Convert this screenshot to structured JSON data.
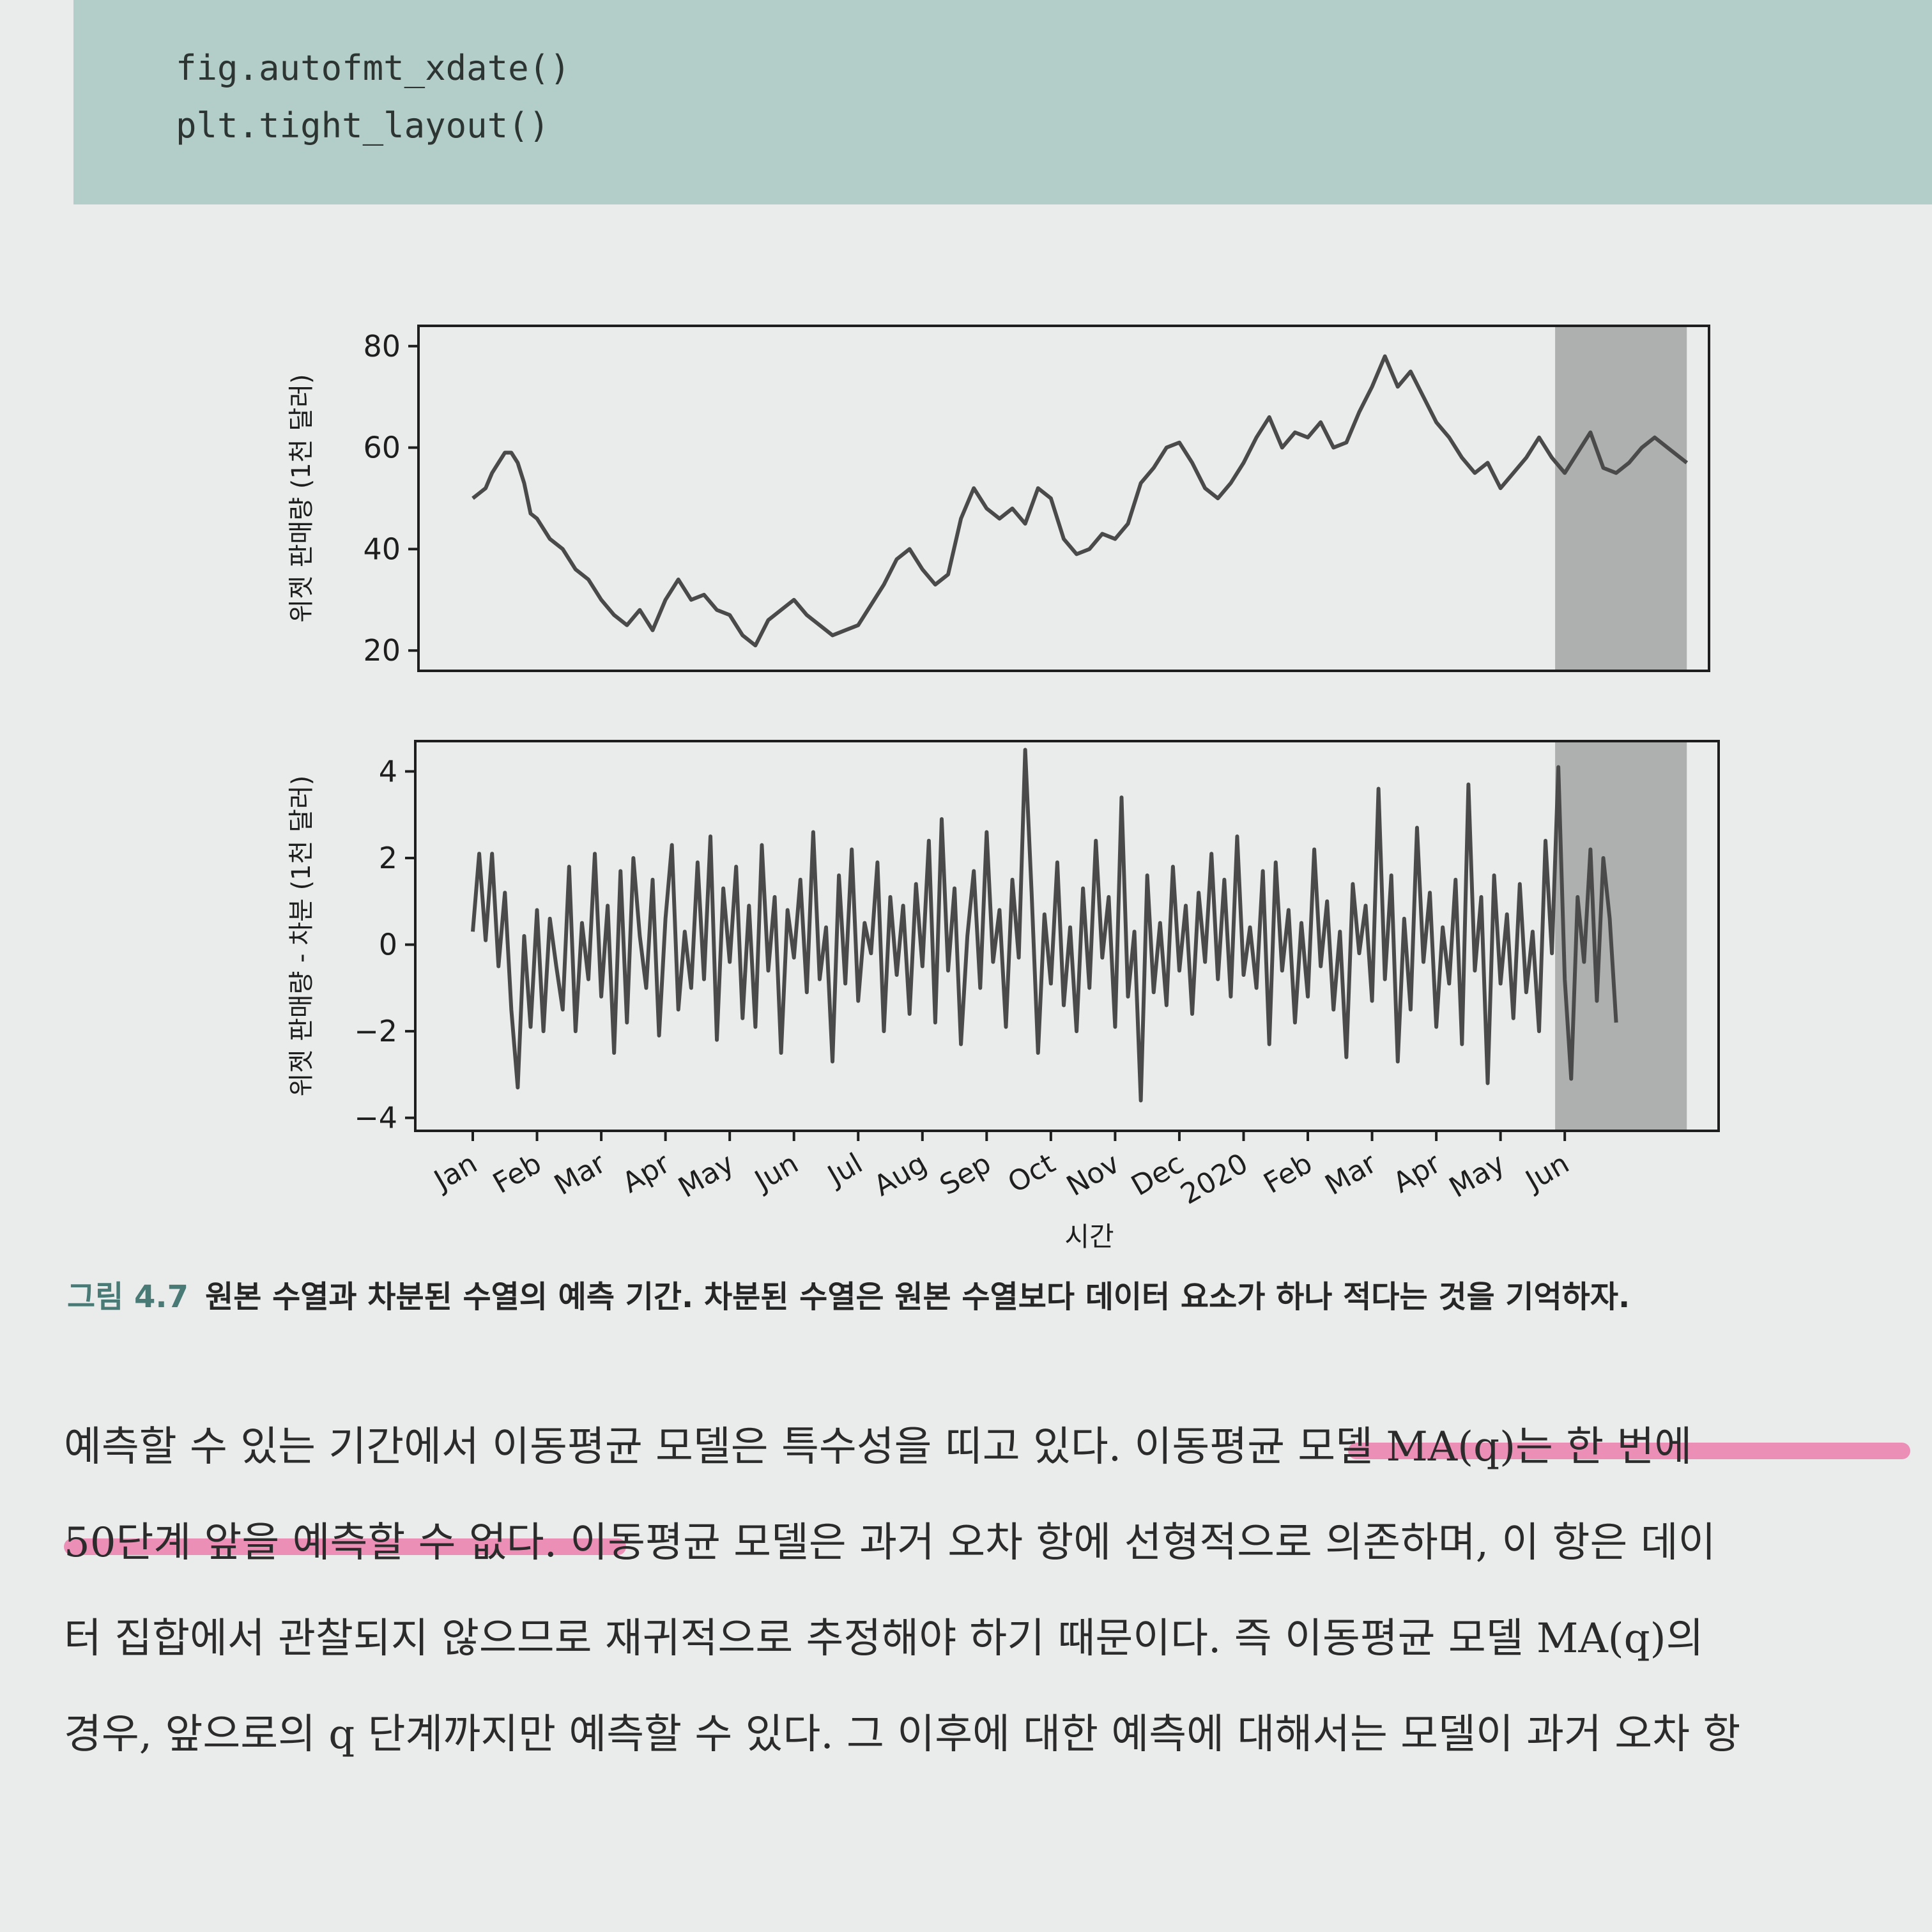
{
  "code": {
    "lines": [
      "fig.autofmt_xdate()",
      "plt.tight_layout()"
    ]
  },
  "chart_data": [
    {
      "type": "line",
      "ylabel": "위젯 판매량 (1천 달러)",
      "ylim": [
        16,
        84
      ],
      "yticks": [
        20,
        40,
        60,
        80
      ],
      "grid": false,
      "forecast_shading": {
        "from_month_index": 16.85,
        "to_month_index": 18.9
      },
      "series": [
        {
          "x_month_index": [
            0,
            0.1,
            0.2,
            0.3,
            0.4,
            0.5,
            0.6,
            0.7,
            0.8,
            0.9,
            1.0,
            1.2,
            1.4,
            1.6,
            1.8,
            2.0,
            2.2,
            2.4,
            2.6,
            2.8,
            3.0,
            3.2,
            3.4,
            3.6,
            3.8,
            4.0,
            4.2,
            4.4,
            4.6,
            4.8,
            5.0,
            5.2,
            5.4,
            5.6,
            5.8,
            6.0,
            6.2,
            6.4,
            6.6,
            6.8,
            7.0,
            7.2,
            7.4,
            7.6,
            7.8,
            8.0,
            8.2,
            8.4,
            8.6,
            8.8,
            9.0,
            9.2,
            9.4,
            9.6,
            9.8,
            10.0,
            10.2,
            10.4,
            10.6,
            10.8,
            11.0,
            11.2,
            11.4,
            11.6,
            11.8,
            12.0,
            12.2,
            12.4,
            12.6,
            12.8,
            13.0,
            13.2,
            13.4,
            13.6,
            13.8,
            14.0,
            14.2,
            14.4,
            14.6,
            14.8,
            15.0,
            15.2,
            15.4,
            15.6,
            15.8,
            16.0,
            16.2,
            16.4,
            16.6,
            16.8,
            17.0,
            17.2,
            17.4,
            17.6,
            17.8,
            18.0,
            18.2,
            18.4,
            18.6,
            18.9
          ],
          "values": [
            50,
            51,
            52,
            55,
            57,
            59,
            59,
            57,
            53,
            47,
            46,
            42,
            40,
            36,
            34,
            30,
            27,
            25,
            28,
            24,
            30,
            34,
            30,
            31,
            28,
            27,
            23,
            21,
            26,
            28,
            30,
            27,
            25,
            23,
            24,
            25,
            29,
            33,
            38,
            40,
            36,
            33,
            35,
            46,
            52,
            48,
            46,
            48,
            45,
            52,
            50,
            42,
            39,
            40,
            43,
            42,
            45,
            53,
            56,
            60,
            61,
            57,
            52,
            50,
            53,
            57,
            62,
            66,
            60,
            63,
            62,
            65,
            60,
            61,
            67,
            72,
            78,
            72,
            75,
            70,
            65,
            62,
            58,
            55,
            57,
            52,
            55,
            58,
            62,
            58,
            55,
            59,
            63,
            56,
            55,
            57,
            60,
            62,
            60,
            57
          ],
          "approximate": true
        }
      ]
    },
    {
      "type": "line",
      "ylabel": "위젯 판매량 - 차분 (1천 달러)",
      "xlabel": "시간",
      "ylim": [
        -4.3,
        4.7
      ],
      "yticks": [
        -4,
        -2,
        0,
        2,
        4
      ],
      "xtick_labels": [
        "Jan",
        "Feb",
        "Mar",
        "Apr",
        "May",
        "Jun",
        "Jul",
        "Aug",
        "Sep",
        "Oct",
        "Nov",
        "Dec",
        "2020",
        "Feb",
        "Mar",
        "Apr",
        "May",
        "Jun"
      ],
      "grid": false,
      "forecast_shading": {
        "from_month_index": 16.85,
        "to_month_index": 18.9
      },
      "series": [
        {
          "step_months": 0.1,
          "values": [
            0.3,
            2.1,
            0.1,
            2.1,
            -0.5,
            1.2,
            -1.5,
            -3.3,
            0.2,
            -1.9,
            0.8,
            -2.0,
            0.6,
            -0.5,
            -1.5,
            1.8,
            -2.0,
            0.5,
            -0.8,
            2.1,
            -1.2,
            0.9,
            -2.5,
            1.7,
            -1.8,
            2.0,
            0.2,
            -1.0,
            1.5,
            -2.1,
            0.6,
            2.3,
            -1.5,
            0.3,
            -1.0,
            1.9,
            -0.8,
            2.5,
            -2.2,
            1.3,
            -0.4,
            1.8,
            -1.7,
            0.9,
            -1.9,
            2.3,
            -0.6,
            1.1,
            -2.5,
            0.8,
            -0.3,
            1.5,
            -1.1,
            2.6,
            -0.8,
            0.4,
            -2.7,
            1.6,
            -0.9,
            2.2,
            -1.3,
            0.5,
            -0.2,
            1.9,
            -2.0,
            1.1,
            -0.7,
            0.9,
            -1.6,
            1.4,
            -0.5,
            2.4,
            -1.8,
            2.9,
            -0.6,
            1.3,
            -2.3,
            0.2,
            1.7,
            -1.0,
            2.6,
            -0.4,
            0.8,
            -1.9,
            1.5,
            -0.3,
            4.5,
            1.2,
            -2.5,
            0.7,
            -0.9,
            1.9,
            -1.4,
            0.4,
            -2.0,
            1.3,
            -1.0,
            2.4,
            -0.3,
            1.1,
            -1.9,
            3.4,
            -1.2,
            0.3,
            -3.6,
            1.6,
            -1.1,
            0.5,
            -1.4,
            1.8,
            -0.6,
            0.9,
            -1.6,
            1.2,
            -0.4,
            2.1,
            -0.8,
            1.5,
            -1.2,
            2.5,
            -0.7,
            0.4,
            -1.0,
            1.7,
            -2.3,
            1.9,
            -0.6,
            0.8,
            -1.8,
            0.5,
            -1.2,
            2.2,
            -0.5,
            1.0,
            -1.5,
            0.3,
            -2.6,
            1.4,
            -0.2,
            0.9,
            -1.3,
            3.6,
            -0.8,
            1.6,
            -2.7,
            0.6,
            -1.5,
            2.7,
            -0.4,
            1.2,
            -1.9,
            0.4,
            -0.9,
            1.5,
            -2.3,
            3.7,
            -0.6,
            1.1,
            -3.2,
            1.6,
            -0.9,
            0.7,
            -1.7,
            1.4,
            -1.1,
            0.3,
            -2.0,
            2.4,
            -0.2,
            4.1,
            -0.8,
            -3.1,
            1.1,
            -0.4,
            2.2,
            -1.3,
            2.0,
            0.6,
            -1.8
          ]
        }
      ]
    }
  ],
  "caption": {
    "figure_number": "그림 4.7",
    "text": "원본 수열과 차분된 수열의 예측 기간. 차분된 수열은 원본 수열보다 데이터 요소가 하나 적다는 것을 기억하자."
  },
  "body": {
    "lines": [
      "예측할 수 있는 기간에서 이동평균 모델은 특수성을 띠고 있다. 이동평균 모델 MA(q)는 한 번에",
      "50단계 앞을 예측할 수 없다. 이동평균 모델은 과거 오차 항에 선형적으로 의존하며, 이 항은 데이",
      "터 집합에서 관찰되지 않으므로 재귀적으로 추정해야 하기 때문이다. 즉 이동평균 모델 MA(q)의",
      "경우, 앞으로의 q 단계까지만 예측할 수 있다. 그 이후에 대한 예측에 대해서는 모델이 과거 오차 항"
    ]
  },
  "colors": {
    "line": "#4a4a4a",
    "shade": "#9a9c9c",
    "highlight": "#ee5e9a",
    "code_bg": "#b3cdc9",
    "caption_accent": "#4a7a76"
  }
}
